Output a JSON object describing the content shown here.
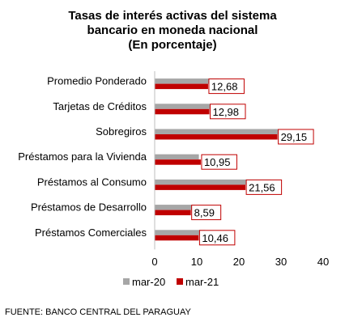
{
  "chart_data": {
    "type": "bar",
    "orientation": "horizontal",
    "title_lines": [
      "Tasas de interés activas del sistema",
      "bancario en moneda nacional",
      "(En porcentaje)"
    ],
    "categories": [
      "Promedio Ponderado",
      "Tarjetas de Créditos",
      "Sobregiros",
      "Préstamos para la Vivienda",
      "Préstamos al Consumo",
      "Préstamos de Desarrollo",
      "Préstamos Comerciales"
    ],
    "series": [
      {
        "name": "mar-20",
        "color": "#a6a6a6",
        "values": [
          15.3,
          15.5,
          31.5,
          10.5,
          27.5,
          9.5,
          12.0
        ]
      },
      {
        "name": "mar-21",
        "color": "#c00000",
        "values": [
          12.68,
          12.98,
          29.15,
          10.95,
          21.56,
          8.59,
          10.46
        ]
      }
    ],
    "data_labels": [
      "12,68",
      "12,98",
      "29,15",
      "10,95",
      "21,56",
      "8,59",
      "10,46"
    ],
    "xlim": [
      0,
      40
    ],
    "xticks": [
      0,
      10,
      20,
      30,
      40
    ],
    "xtick_labels": [
      "0",
      "10",
      "20",
      "30",
      "40"
    ],
    "grid": false,
    "legend_position": "bottom",
    "source": "FUENTE: BANCO CENTRAL DEL PARAGUAY"
  }
}
